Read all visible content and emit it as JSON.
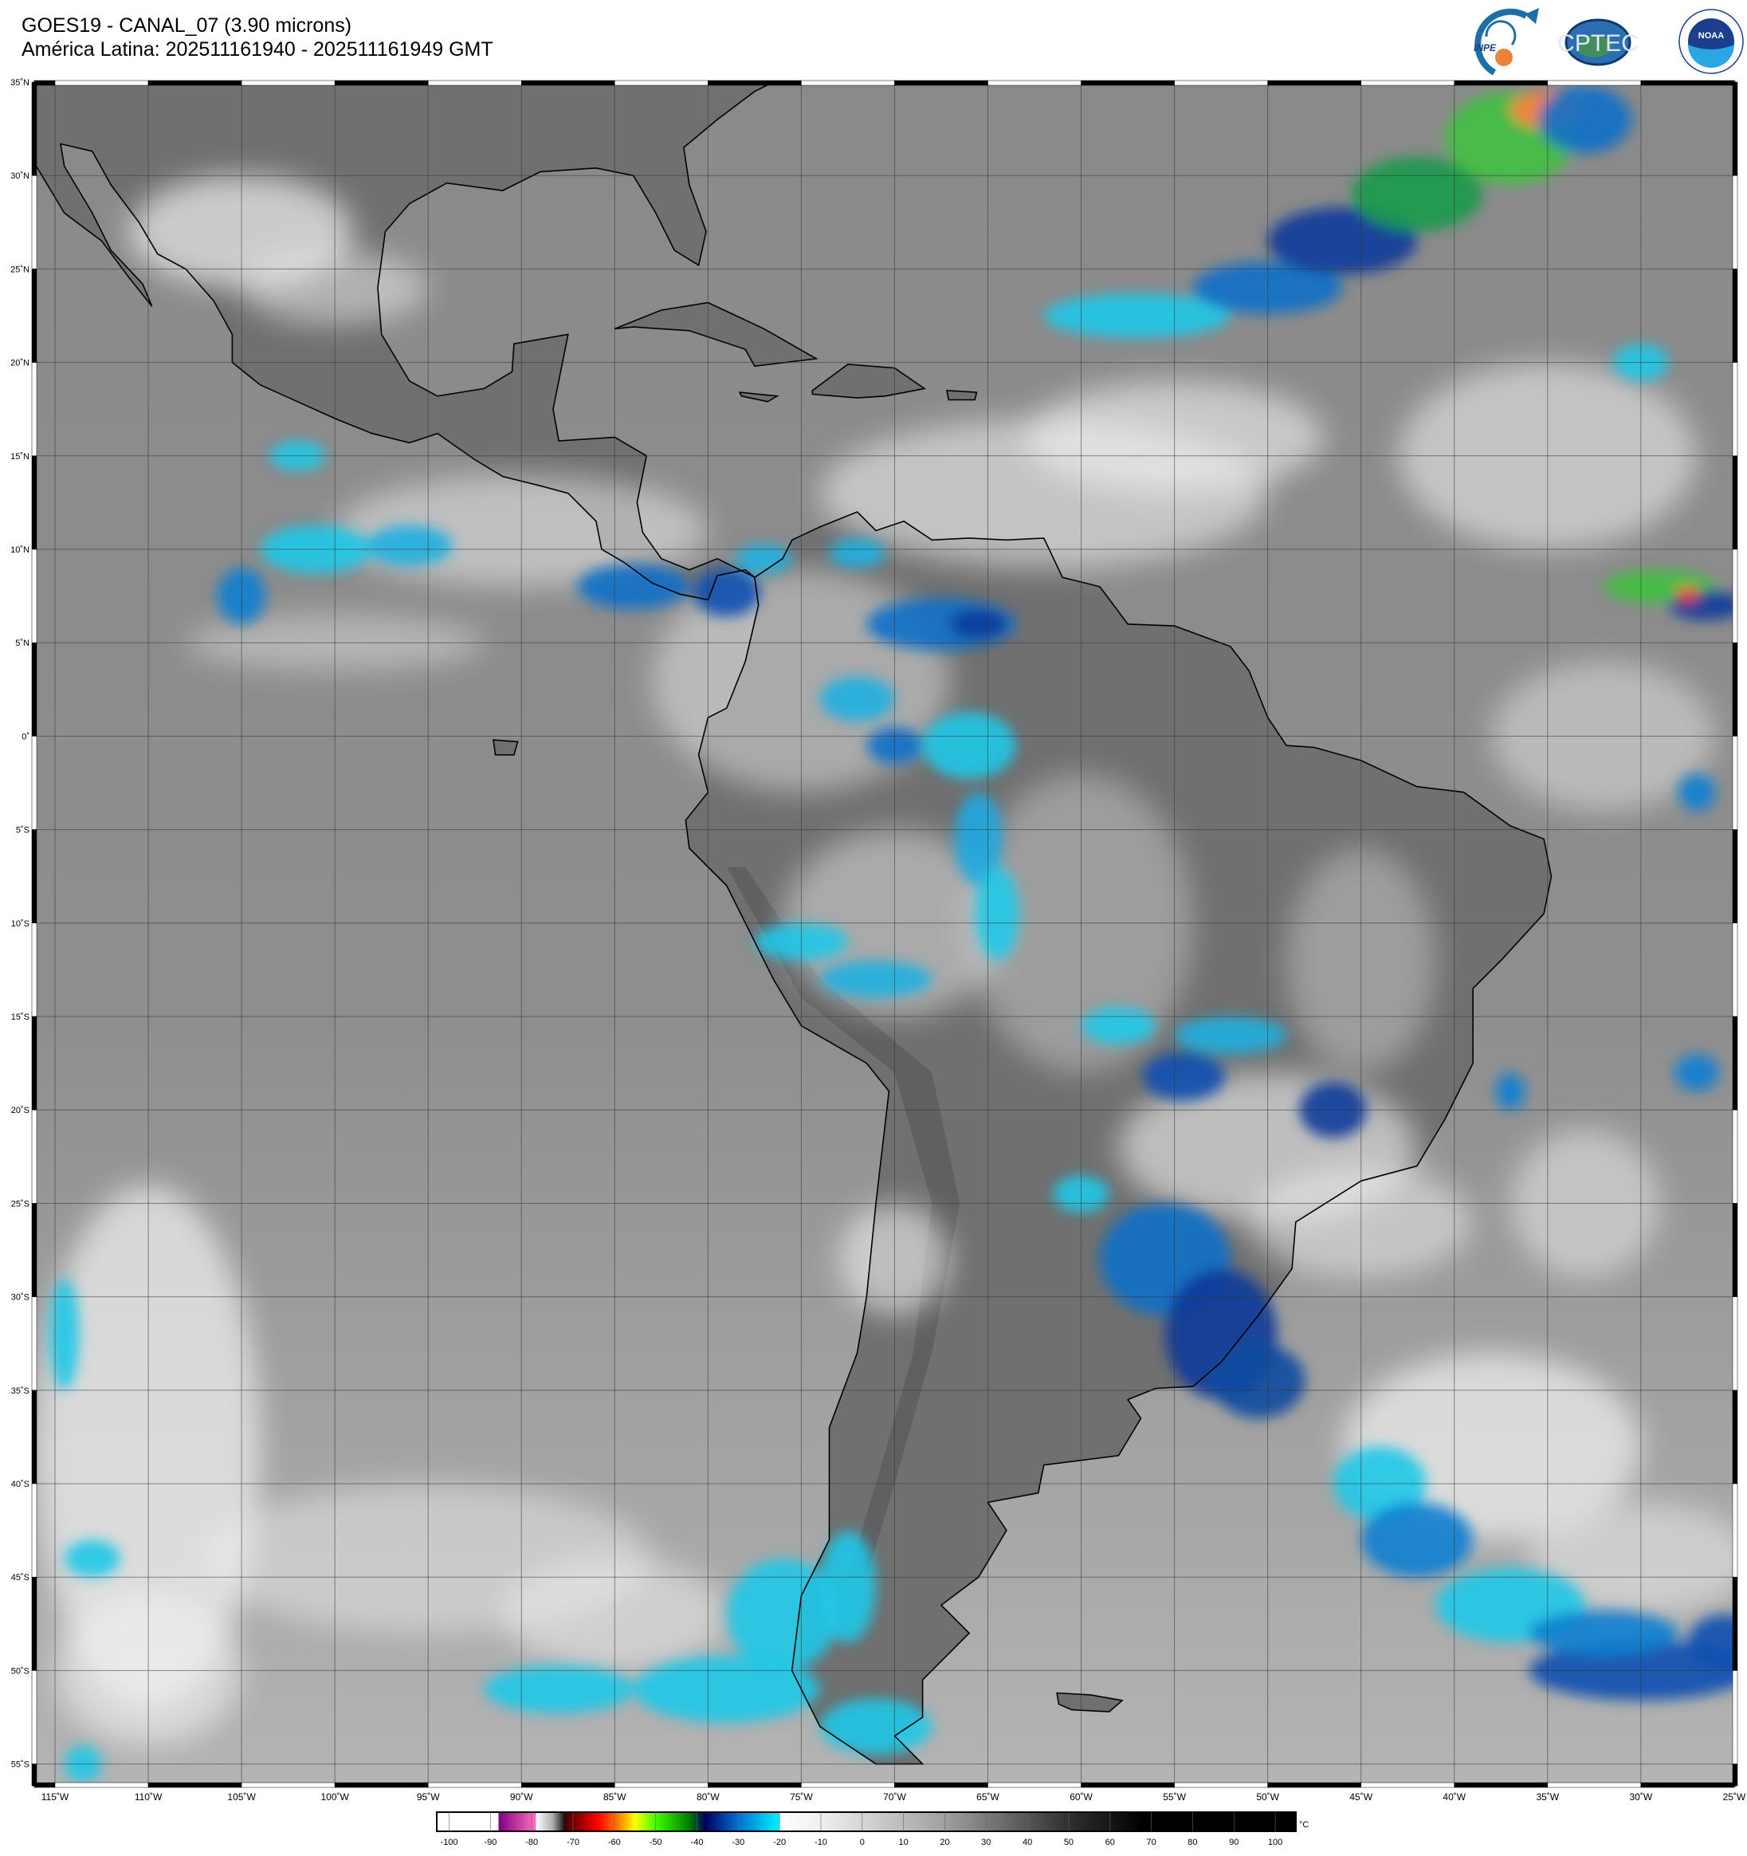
{
  "header": {
    "title": "GOES19 - CANAL_07 (3.90 microns)",
    "subtitle": "América Latina: 202511161940 - 202511161949 GMT"
  },
  "logos": {
    "inpe": "INPE",
    "cptec": "CPTEC",
    "noaa": "NOAA",
    "noaa_ring": "NATIONAL OCEANIC AND ATMOSPHERIC ADMINISTRATION · U.S. DEPARTMENT OF COMMERCE"
  },
  "map": {
    "lon_range": [
      -116.8,
      -25
    ],
    "lat_range": [
      -56.1,
      35
    ],
    "grid_step_deg": 5,
    "lat_labels": [
      "35˚N",
      "30˚N",
      "25˚N",
      "20˚N",
      "15˚N",
      "10˚N",
      "5˚N",
      "0˚",
      "5˚S",
      "10˚S",
      "15˚S",
      "20˚S",
      "25˚S",
      "30˚S",
      "35˚S",
      "40˚S",
      "45˚S",
      "50˚S",
      "55˚S"
    ],
    "lon_labels": [
      "115˚W",
      "110˚W",
      "105˚W",
      "100˚W",
      "95˚W",
      "90˚W",
      "85˚W",
      "80˚W",
      "75˚W",
      "70˚W",
      "65˚W",
      "60˚W",
      "55˚W",
      "50˚W",
      "45˚W",
      "40˚W",
      "35˚W",
      "30˚W",
      "25˚W"
    ],
    "ocean_color": "#8c8c8c",
    "land_color": "#707070",
    "coast_color": "#000000"
  },
  "colorbar": {
    "unit": "°C",
    "range": [
      -103,
      105
    ],
    "ticks": [
      "-100",
      "-90",
      "-80",
      "-70",
      "-60",
      "-50",
      "-40",
      "-30",
      "-20",
      "-10",
      "0",
      "10",
      "20",
      "30",
      "40",
      "50",
      "60",
      "70",
      "80",
      "90",
      "100"
    ],
    "stops": [
      [
        -103,
        "#ffffff"
      ],
      [
        -88,
        "#ffffff"
      ],
      [
        -88,
        "#800080"
      ],
      [
        -79,
        "#ff70c0"
      ],
      [
        -79,
        "#ffffff"
      ],
      [
        -75,
        "#b0b0b0"
      ],
      [
        -72,
        "#101010"
      ],
      [
        -72,
        "#400000"
      ],
      [
        -64,
        "#ff0000"
      ],
      [
        -59,
        "#ff8000"
      ],
      [
        -55,
        "#ffff00"
      ],
      [
        -50,
        "#40ff00"
      ],
      [
        -42,
        "#008000"
      ],
      [
        -38,
        "#000060"
      ],
      [
        -30,
        "#0070d0"
      ],
      [
        -20,
        "#00f0ff"
      ],
      [
        -20,
        "#ffffff"
      ],
      [
        -10,
        "#f0f0f0"
      ],
      [
        20,
        "#a0a0a0"
      ],
      [
        50,
        "#303030"
      ],
      [
        68,
        "#000000"
      ],
      [
        105,
        "#000000"
      ]
    ]
  }
}
